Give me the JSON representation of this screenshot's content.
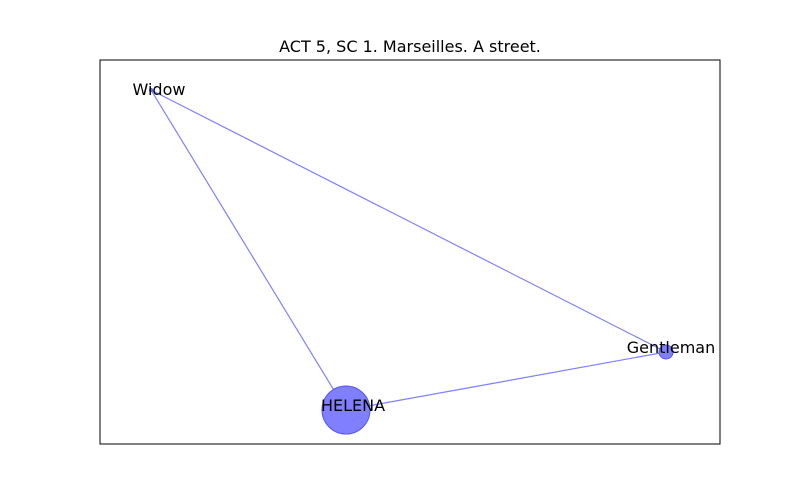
{
  "title": "ACT 5, SC 1. Marseilles. A street.",
  "colors": {
    "node_fill": "#7f7fff",
    "node_stroke": "#5555ee",
    "edge": "#7f7fff",
    "frame": "#000000"
  },
  "nodes": [
    {
      "id": "Widow",
      "label": "Widow",
      "size_rank": 1
    },
    {
      "id": "Gentleman",
      "label": "Gentleman",
      "size_rank": 2
    },
    {
      "id": "HELENA",
      "label": "HELENA",
      "size_rank": 3
    }
  ],
  "edges": [
    {
      "source": "Widow",
      "target": "HELENA"
    },
    {
      "source": "Widow",
      "target": "Gentleman"
    },
    {
      "source": "HELENA",
      "target": "Gentleman"
    }
  ]
}
